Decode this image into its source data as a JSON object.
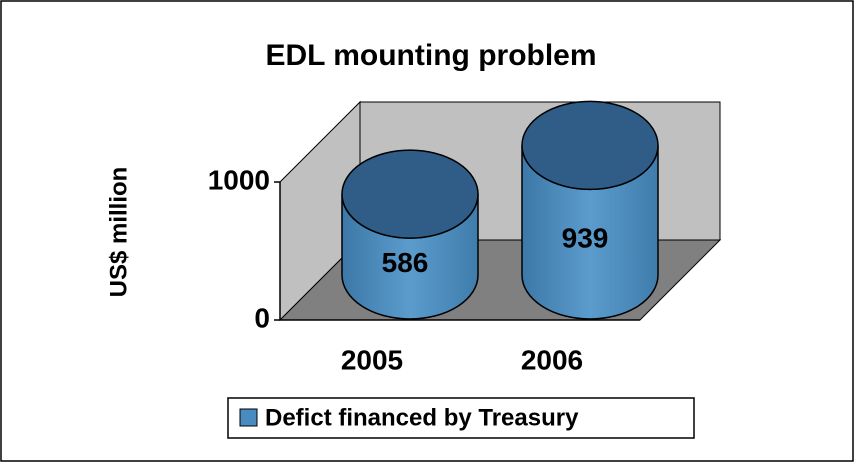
{
  "chart_data": {
    "type": "bar3d-cylinder",
    "title": "EDL mounting problem",
    "y_label": "US$ million",
    "categories": [
      "2005",
      "2006"
    ],
    "series": [
      {
        "name": "Defict financed by Treasury",
        "color": "#4a8bbf",
        "values": [
          586,
          939
        ]
      }
    ],
    "ylim": [
      0,
      1000
    ],
    "yticks": [
      0,
      1000
    ],
    "grid": false,
    "legend": "bottom"
  }
}
